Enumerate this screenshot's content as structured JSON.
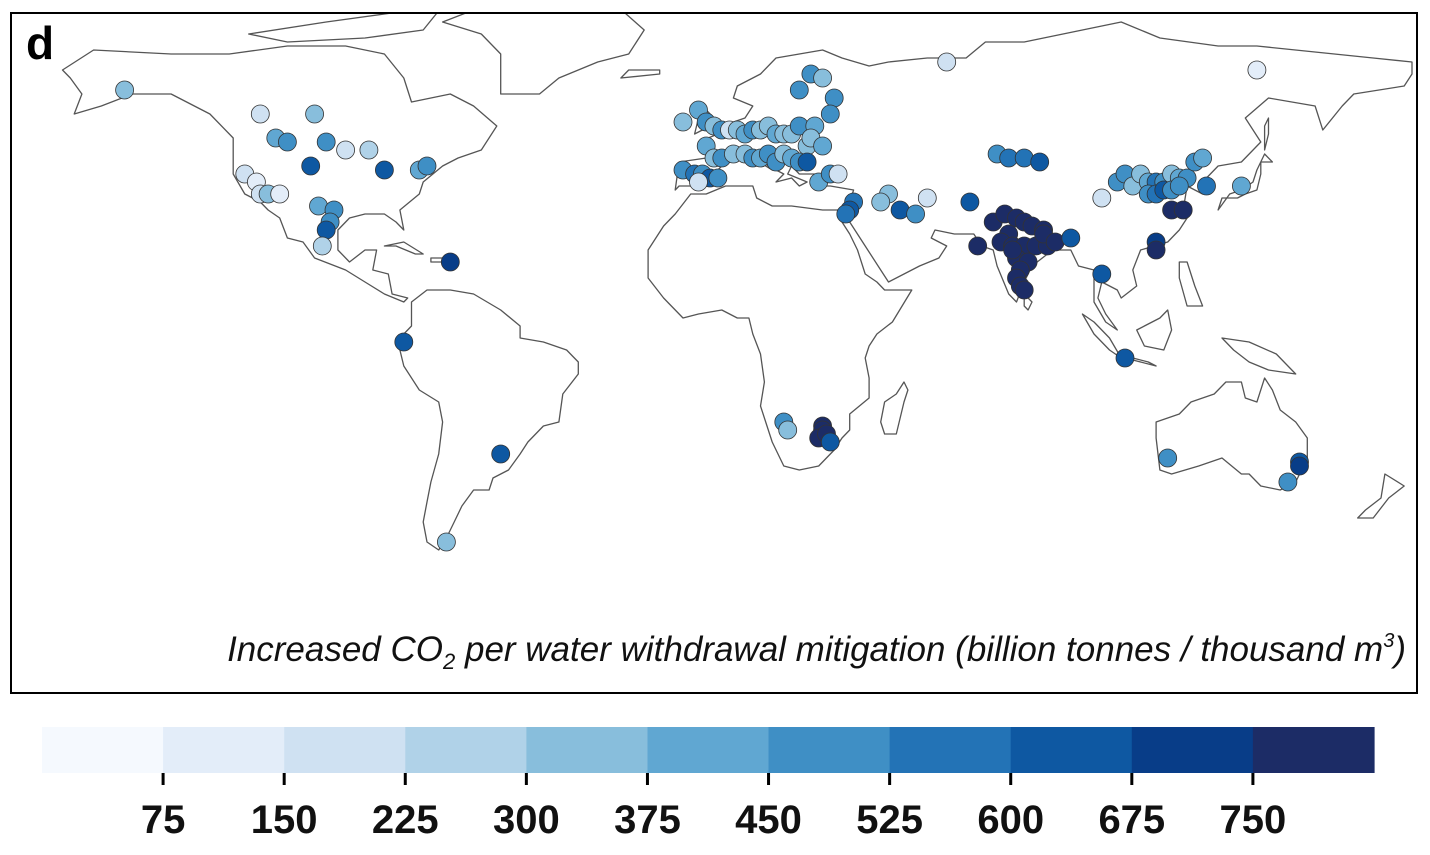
{
  "panel_label": "d",
  "caption": {
    "part1": "Increased CO",
    "sub": "2",
    "part2": " per water withdrawal mitigation (billion tonnes / thousand m",
    "sup": "3",
    "part3": ")"
  },
  "colorbar": {
    "colors": [
      "#f5f9fe",
      "#e3edf9",
      "#cfe1f2",
      "#b0d2e8",
      "#88bedc",
      "#60a7d2",
      "#3f8fc5",
      "#2373b6",
      "#0e58a2",
      "#083d88",
      "#1c2c66"
    ],
    "ticks": [
      "75",
      "150",
      "225",
      "300",
      "375",
      "450",
      "525",
      "600",
      "675",
      "750"
    ]
  },
  "chart_data": {
    "type": "scatter",
    "title": "",
    "xlabel": "",
    "ylabel": "",
    "color_scale": {
      "min": 0,
      "max": 825,
      "step": 75
    },
    "series": [
      {
        "values": [
          [
            -152,
            61,
            300
          ],
          [
            -117,
            55,
            200
          ],
          [
            -103,
            55,
            350
          ],
          [
            -113,
            49,
            400
          ],
          [
            -110,
            48,
            500
          ],
          [
            -100,
            48,
            450
          ],
          [
            -95,
            46,
            200
          ],
          [
            -89,
            46,
            250
          ],
          [
            -85,
            41,
            650
          ],
          [
            -76,
            41,
            400
          ],
          [
            -74,
            42,
            450
          ],
          [
            -104,
            42,
            600
          ],
          [
            -121,
            40,
            175
          ],
          [
            -118,
            38,
            120
          ],
          [
            -117,
            35,
            170
          ],
          [
            -115,
            35,
            300
          ],
          [
            -112,
            35,
            75
          ],
          [
            -102,
            32,
            400
          ],
          [
            -98,
            31,
            450
          ],
          [
            -99,
            28,
            500
          ],
          [
            -100,
            26,
            600
          ],
          [
            -101,
            22,
            250
          ],
          [
            -68,
            18,
            700
          ],
          [
            -80,
            -2,
            650
          ],
          [
            -55,
            -30,
            600
          ],
          [
            -69,
            -52,
            300
          ],
          [
            -8,
            53,
            350
          ],
          [
            -4,
            56,
            400
          ],
          [
            -2,
            53,
            450
          ],
          [
            0,
            52,
            300
          ],
          [
            2,
            51,
            450
          ],
          [
            4,
            51,
            200
          ],
          [
            6,
            51,
            350
          ],
          [
            8,
            50,
            400
          ],
          [
            10,
            51,
            450
          ],
          [
            12,
            51,
            300
          ],
          [
            14,
            52,
            350
          ],
          [
            16,
            50,
            400
          ],
          [
            18,
            50,
            350
          ],
          [
            20,
            50,
            300
          ],
          [
            22,
            52,
            500
          ],
          [
            24,
            47,
            350
          ],
          [
            -2,
            47,
            400
          ],
          [
            0,
            44,
            350
          ],
          [
            2,
            44,
            450
          ],
          [
            5,
            45,
            350
          ],
          [
            8,
            45,
            300
          ],
          [
            10,
            44,
            450
          ],
          [
            12,
            44,
            400
          ],
          [
            14,
            45,
            500
          ],
          [
            16,
            43,
            450
          ],
          [
            18,
            45,
            350
          ],
          [
            20,
            44,
            400
          ],
          [
            22,
            43,
            450
          ],
          [
            24,
            43,
            650
          ],
          [
            -8,
            41,
            500
          ],
          [
            -5,
            40,
            550
          ],
          [
            -3,
            40,
            450
          ],
          [
            -1,
            39,
            600
          ],
          [
            -4,
            38,
            150
          ],
          [
            1,
            39,
            450
          ],
          [
            27,
            38,
            400
          ],
          [
            30,
            40,
            450
          ],
          [
            36,
            33,
            550
          ],
          [
            35,
            31,
            600
          ],
          [
            34,
            30,
            550
          ],
          [
            32,
            40,
            150
          ],
          [
            45,
            35,
            350
          ],
          [
            43,
            33,
            350
          ],
          [
            48,
            31,
            600
          ],
          [
            52,
            30,
            450
          ],
          [
            55,
            34,
            200
          ],
          [
            66,
            33,
            650
          ],
          [
            60,
            68,
            200
          ],
          [
            25,
            65,
            450
          ],
          [
            28,
            64,
            300
          ],
          [
            22,
            61,
            500
          ],
          [
            31,
            59,
            450
          ],
          [
            30,
            55,
            450
          ],
          [
            26,
            52,
            400
          ],
          [
            25,
            49,
            350
          ],
          [
            28,
            47,
            400
          ],
          [
            73,
            45,
            500
          ],
          [
            76,
            44,
            550
          ],
          [
            80,
            44,
            550
          ],
          [
            84,
            43,
            650
          ],
          [
            100,
            34,
            200
          ],
          [
            104,
            38,
            500
          ],
          [
            106,
            40,
            450
          ],
          [
            108,
            37,
            300
          ],
          [
            110,
            40,
            350
          ],
          [
            112,
            38,
            400
          ],
          [
            114,
            38,
            550
          ],
          [
            116,
            38,
            450
          ],
          [
            118,
            40,
            350
          ],
          [
            120,
            39,
            400
          ],
          [
            122,
            39,
            450
          ],
          [
            112,
            35,
            500
          ],
          [
            114,
            35,
            550
          ],
          [
            116,
            36,
            600
          ],
          [
            118,
            36,
            450
          ],
          [
            120,
            37,
            500
          ],
          [
            124,
            43,
            450
          ],
          [
            126,
            44,
            400
          ],
          [
            118,
            31,
            750
          ],
          [
            121,
            31,
            800
          ],
          [
            114,
            23,
            700
          ],
          [
            114,
            21,
            750
          ],
          [
            127,
            37,
            550
          ],
          [
            136,
            37,
            400
          ],
          [
            140,
            66,
            100
          ],
          [
            72,
            28,
            800
          ],
          [
            75,
            30,
            800
          ],
          [
            78,
            29,
            800
          ],
          [
            80,
            28,
            750
          ],
          [
            82,
            27,
            800
          ],
          [
            85,
            26,
            800
          ],
          [
            76,
            25,
            800
          ],
          [
            74,
            23,
            800
          ],
          [
            77,
            22,
            800
          ],
          [
            80,
            22,
            800
          ],
          [
            83,
            22,
            800
          ],
          [
            86,
            22,
            800
          ],
          [
            78,
            19,
            800
          ],
          [
            81,
            18,
            800
          ],
          [
            79,
            16,
            750
          ],
          [
            78,
            14,
            800
          ],
          [
            79,
            12,
            800
          ],
          [
            80,
            11,
            750
          ],
          [
            77,
            21,
            800
          ],
          [
            85,
            25,
            800
          ],
          [
            88,
            23,
            800
          ],
          [
            68,
            22,
            800
          ],
          [
            92,
            24,
            600
          ],
          [
            100,
            15,
            600
          ],
          [
            106,
            -6,
            600
          ],
          [
            18,
            -22,
            450
          ],
          [
            28,
            -23,
            800
          ],
          [
            28,
            -24,
            800
          ],
          [
            27,
            -26,
            800
          ],
          [
            29,
            -25,
            800
          ],
          [
            30,
            -27,
            600
          ],
          [
            19,
            -24,
            300
          ],
          [
            117,
            -31,
            450
          ],
          [
            151,
            -32,
            650
          ],
          [
            151,
            -33,
            700
          ],
          [
            148,
            -37,
            450
          ]
        ]
      }
    ]
  }
}
